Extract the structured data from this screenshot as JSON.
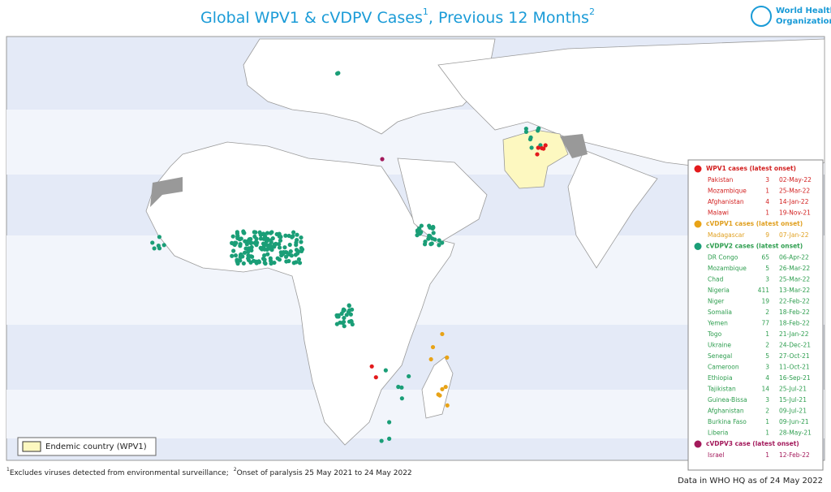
{
  "header": {
    "title": "Global WPV1 & cVDPV Cases",
    "title_sup1": "1",
    "title_mid": ", Previous 12 Months",
    "title_sup2": "2",
    "logo_line1": "World Health",
    "logo_line2": "Organization"
  },
  "legend": {
    "sections": [
      {
        "title": "WPV1 cases (latest onset)",
        "rows": [
          [
            "Pakistan",
            3,
            "02-May-22"
          ],
          [
            "Mozambique",
            1,
            "25-Mar-22"
          ],
          [
            "Afghanistan",
            4,
            "14-Jan-22"
          ],
          [
            "Malawi",
            1,
            "19-Nov-21"
          ]
        ]
      },
      {
        "title": "cVDPV1 cases (latest onset)",
        "rows": [
          [
            "Madagascar",
            9,
            "07-Jan-22"
          ]
        ]
      },
      {
        "title": "cVDPV2 cases (latest onset)",
        "rows": [
          [
            "DR Congo",
            65,
            "06-Apr-22"
          ],
          [
            "Mozambique",
            5,
            "26-Mar-22"
          ],
          [
            "Chad",
            3,
            "25-Mar-22"
          ],
          [
            "Nigeria",
            411,
            "13-Mar-22"
          ],
          [
            "Niger",
            19,
            "22-Feb-22"
          ],
          [
            "Somalia",
            2,
            "18-Feb-22"
          ],
          [
            "Yemen",
            77,
            "18-Feb-22"
          ],
          [
            "Togo",
            1,
            "21-Jan-22"
          ],
          [
            "Ukraine",
            2,
            "24-Dec-21"
          ],
          [
            "Senegal",
            5,
            "27-Oct-21"
          ],
          [
            "Cameroon",
            3,
            "11-Oct-21"
          ],
          [
            "Ethiopia",
            4,
            "16-Sep-21"
          ],
          [
            "Tajikistan",
            14,
            "25-Jul-21"
          ],
          [
            "Guinea-Bissa",
            3,
            "15-Jul-21"
          ],
          [
            "Afghanistan",
            2,
            "09-Jul-21"
          ],
          [
            "Burkina Faso",
            1,
            "09-Jun-21"
          ],
          [
            "Liberia",
            1,
            "28-May-21"
          ]
        ]
      },
      {
        "title": "cVDPV3 case (latest onset)",
        "rows": [
          [
            "Israel",
            1,
            "12-Feb-22"
          ]
        ]
      }
    ]
  },
  "endemic_legend": "Endemic country (WPV1)",
  "footnotes": {
    "sup1": "1",
    "note1": "Excludes viruses detected from environmental surveillance;",
    "sup2": "2",
    "note2": "Onset of paralysis 25 May 2021 to 24 May 2022"
  },
  "data_note": "Data in WHO HQ as of 24 May 2022"
}
